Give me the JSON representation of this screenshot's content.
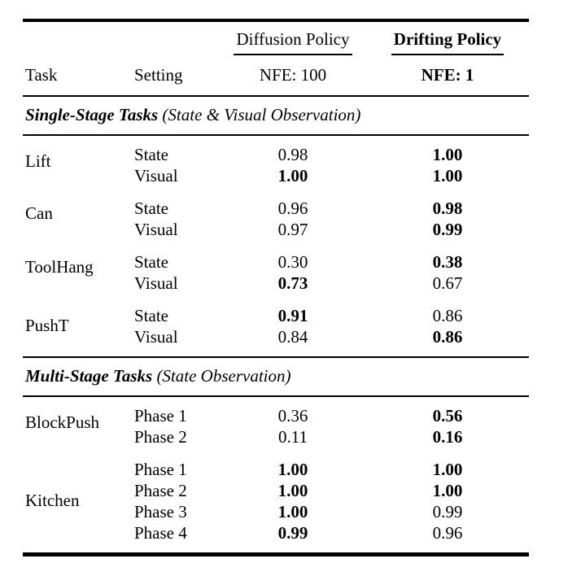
{
  "colors": {
    "text": "#000000",
    "background": "#ffffff"
  },
  "header": {
    "task_col": "Task",
    "setting_col": "Setting",
    "method_groups": [
      {
        "label": "Diffusion Policy",
        "sub_label": "NFE: 100",
        "bold": false
      },
      {
        "label": "Drifting Policy",
        "sub_label": "NFE: 1",
        "bold": true
      }
    ]
  },
  "sections": [
    {
      "title": "Single-Stage Tasks",
      "subtitle": "(State & Visual Observation)",
      "groups": [
        {
          "task": "Lift",
          "rows": [
            {
              "setting": "State",
              "diffusion": {
                "value": "0.98",
                "bold": false
              },
              "drifting": {
                "value": "1.00",
                "bold": true
              }
            },
            {
              "setting": "Visual",
              "diffusion": {
                "value": "1.00",
                "bold": true
              },
              "drifting": {
                "value": "1.00",
                "bold": true
              }
            }
          ]
        },
        {
          "task": "Can",
          "rows": [
            {
              "setting": "State",
              "diffusion": {
                "value": "0.96",
                "bold": false
              },
              "drifting": {
                "value": "0.98",
                "bold": true
              }
            },
            {
              "setting": "Visual",
              "diffusion": {
                "value": "0.97",
                "bold": false
              },
              "drifting": {
                "value": "0.99",
                "bold": true
              }
            }
          ]
        },
        {
          "task": "ToolHang",
          "rows": [
            {
              "setting": "State",
              "diffusion": {
                "value": "0.30",
                "bold": false
              },
              "drifting": {
                "value": "0.38",
                "bold": true
              }
            },
            {
              "setting": "Visual",
              "diffusion": {
                "value": "0.73",
                "bold": true
              },
              "drifting": {
                "value": "0.67",
                "bold": false
              }
            }
          ]
        },
        {
          "task": "PushT",
          "rows": [
            {
              "setting": "State",
              "diffusion": {
                "value": "0.91",
                "bold": true
              },
              "drifting": {
                "value": "0.86",
                "bold": false
              }
            },
            {
              "setting": "Visual",
              "diffusion": {
                "value": "0.84",
                "bold": false
              },
              "drifting": {
                "value": "0.86",
                "bold": true
              }
            }
          ]
        }
      ]
    },
    {
      "title": "Multi-Stage Tasks",
      "subtitle": "(State Observation)",
      "groups": [
        {
          "task": "BlockPush",
          "rows": [
            {
              "setting": "Phase 1",
              "diffusion": {
                "value": "0.36",
                "bold": false
              },
              "drifting": {
                "value": "0.56",
                "bold": true
              }
            },
            {
              "setting": "Phase 2",
              "diffusion": {
                "value": "0.11",
                "bold": false
              },
              "drifting": {
                "value": "0.16",
                "bold": true
              }
            }
          ]
        },
        {
          "task": "Kitchen",
          "rows": [
            {
              "setting": "Phase 1",
              "diffusion": {
                "value": "1.00",
                "bold": true
              },
              "drifting": {
                "value": "1.00",
                "bold": true
              }
            },
            {
              "setting": "Phase 2",
              "diffusion": {
                "value": "1.00",
                "bold": true
              },
              "drifting": {
                "value": "1.00",
                "bold": true
              }
            },
            {
              "setting": "Phase 3",
              "diffusion": {
                "value": "1.00",
                "bold": true
              },
              "drifting": {
                "value": "0.99",
                "bold": false
              }
            },
            {
              "setting": "Phase 4",
              "diffusion": {
                "value": "0.99",
                "bold": true
              },
              "drifting": {
                "value": "0.96",
                "bold": false
              }
            }
          ]
        }
      ]
    }
  ]
}
